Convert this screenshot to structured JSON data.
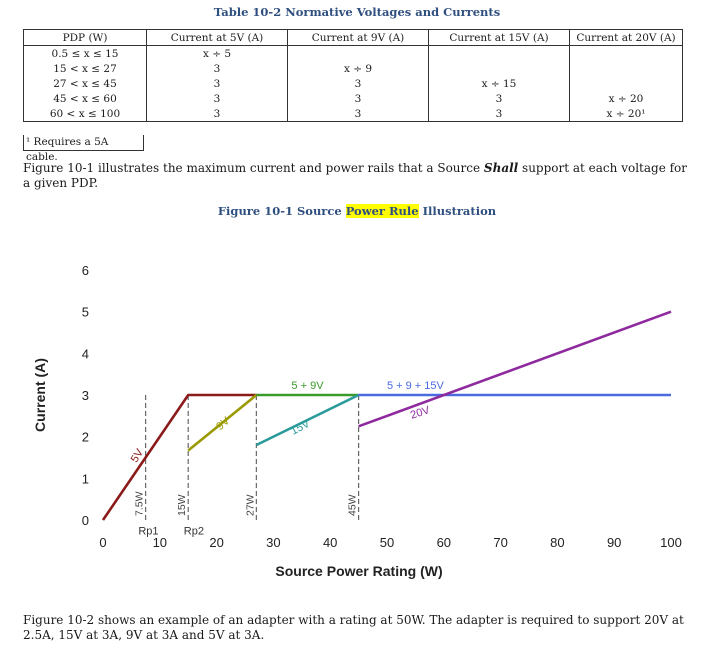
{
  "table": {
    "caption": "Table 10-2 Normative Voltages and Currents",
    "headers": [
      "PDP (W)",
      "Current at 5V (A)",
      "Current at 9V (A)",
      "Current at 15V (A)",
      "Current at 20V (A)"
    ],
    "rows": [
      [
        "0.5 ≤ x ≤ 15",
        "x ÷ 5",
        "",
        "",
        ""
      ],
      [
        "15 < x ≤ 27",
        "3",
        "x ÷ 9",
        "",
        ""
      ],
      [
        "27 < x ≤ 45",
        "3",
        "3",
        "x ÷ 15",
        ""
      ],
      [
        "45 < x ≤ 60",
        "3",
        "3",
        "3",
        "x ÷ 20"
      ],
      [
        "60 < x ≤ 100",
        "3",
        "3",
        "3",
        "x ÷ 20¹"
      ]
    ],
    "footnote": "¹ Requires a 5A cable."
  },
  "para1": {
    "before": "Figure 10-1 illustrates the maximum current and power rails that a Source ",
    "emphasis": "Shall",
    "after": " support at each voltage for a given PDP."
  },
  "figure_caption": {
    "before": "Figure 10-1 Source ",
    "highlight": "Power Rule",
    "after": " Illustration"
  },
  "para2": "Figure 10-2 shows an example of an adapter with a rating at 50W. The adapter is required to support 20V at 2.5A, 15V at 3A, 9V at 3A and 5V at 3A.",
  "chart_data": {
    "type": "line",
    "xlabel": "Source Power Rating (W)",
    "ylabel": "Current (A)",
    "xlim": [
      0,
      100
    ],
    "ylim": [
      0,
      6
    ],
    "xticks": [
      0,
      10,
      20,
      30,
      40,
      50,
      60,
      70,
      80,
      90,
      100
    ],
    "yticks": [
      0,
      1,
      2,
      3,
      4,
      5,
      6
    ],
    "grid": false,
    "series": [
      {
        "color": "#8b1a1a",
        "points": [
          [
            0,
            0
          ],
          [
            15,
            3
          ],
          [
            27,
            3
          ]
        ]
      },
      {
        "color": "#9a9a00",
        "points": [
          [
            15,
            1.667
          ],
          [
            27,
            3
          ]
        ]
      },
      {
        "color": "#3a9a2a",
        "points": [
          [
            27,
            3
          ],
          [
            45,
            3
          ]
        ]
      },
      {
        "color": "#2a9a9a",
        "points": [
          [
            27,
            1.8
          ],
          [
            45,
            3
          ]
        ]
      },
      {
        "color": "#4a6ae0",
        "points": [
          [
            45,
            3
          ],
          [
            100,
            3
          ]
        ]
      },
      {
        "color": "#8e2a9e",
        "points": [
          [
            45,
            2.25
          ],
          [
            100,
            5
          ]
        ]
      }
    ],
    "markers": [
      {
        "x": 7.5,
        "label": "7.5W"
      },
      {
        "x": 15,
        "label": "15W"
      },
      {
        "x": 27,
        "label": "27W"
      },
      {
        "x": 45,
        "label": "45W"
      }
    ],
    "annotations": [
      {
        "text": "5V",
        "x": 6.5,
        "y": 1.5,
        "color": "#8b1a1a",
        "rotate": -58
      },
      {
        "text": "9V",
        "x": 21.5,
        "y": 2.25,
        "color": "#9a9a00",
        "rotate": -40
      },
      {
        "text": "15V",
        "x": 35,
        "y": 2.15,
        "color": "#2a9a9a",
        "rotate": -28
      },
      {
        "text": "5 + 9V",
        "x": 36,
        "y": 3.15,
        "color": "#3a9a2a",
        "rotate": 0
      },
      {
        "text": "5 + 9 + 15V",
        "x": 55,
        "y": 3.15,
        "color": "#4a6ae0",
        "rotate": 0
      },
      {
        "text": "20V",
        "x": 56,
        "y": 2.5,
        "color": "#8e2a9e",
        "rotate": -18
      },
      {
        "text": "Rp1",
        "x": 8,
        "y": -0.35,
        "color": "#333333",
        "rotate": 0
      },
      {
        "text": "Rp2",
        "x": 16,
        "y": -0.35,
        "color": "#333333",
        "rotate": 0
      }
    ]
  }
}
